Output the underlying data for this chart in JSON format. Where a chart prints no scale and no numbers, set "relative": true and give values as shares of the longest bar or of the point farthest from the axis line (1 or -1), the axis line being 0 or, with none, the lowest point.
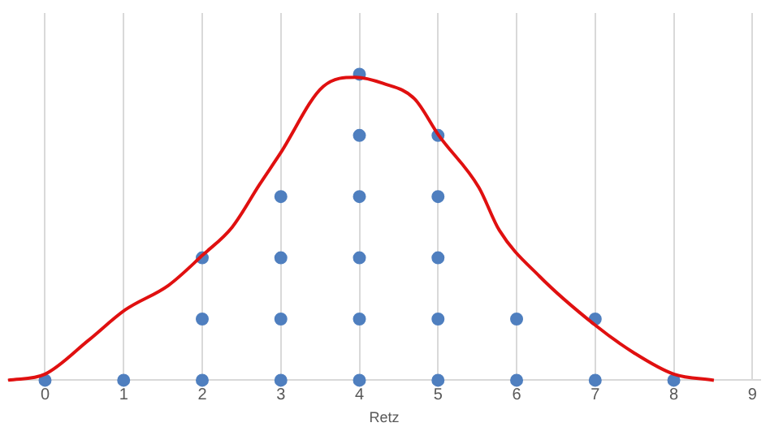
{
  "chart_data": {
    "type": "scatter",
    "xlabel": "Retz",
    "relative": true,
    "xlim": [
      -0.47,
      9.1
    ],
    "xticks": [
      0,
      1,
      2,
      3,
      4,
      5,
      6,
      7,
      8,
      9
    ],
    "grid": "x",
    "legend": false,
    "marker": "circle",
    "series": [
      {
        "type": "line",
        "color": "#e01010",
        "marker": "none",
        "x": [
          -0.47,
          0,
          0.55,
          1.02,
          1.57,
          2.01,
          2.38,
          2.73,
          2.99,
          3.54,
          3.95,
          4.3,
          4.7,
          5.01,
          5.52,
          5.78,
          6.29,
          7.0,
          7.49,
          8.0,
          8.51
        ],
        "values": [
          0,
          0.02,
          0.13,
          0.23,
          0.31,
          0.41,
          0.5,
          0.64,
          0.74,
          0.96,
          0.99,
          0.97,
          0.92,
          0.8,
          0.63,
          0.49,
          0.34,
          0.18,
          0.09,
          0.02,
          0
        ]
      },
      {
        "color": "#4f7fbf",
        "x": [
          0,
          1,
          2,
          2,
          2,
          3,
          3,
          3,
          3,
          4,
          4,
          4,
          4,
          4,
          4,
          5,
          5,
          5,
          5,
          5,
          6,
          6,
          7,
          7,
          8
        ],
        "values": [
          0,
          0,
          0,
          0.2,
          0.4,
          0,
          0.2,
          0.4,
          0.6,
          0,
          0.2,
          0.4,
          0.6,
          0.8,
          1,
          0,
          0.2,
          0.4,
          0.6,
          0.8,
          0,
          0.2,
          0,
          0.2,
          0
        ]
      }
    ]
  }
}
